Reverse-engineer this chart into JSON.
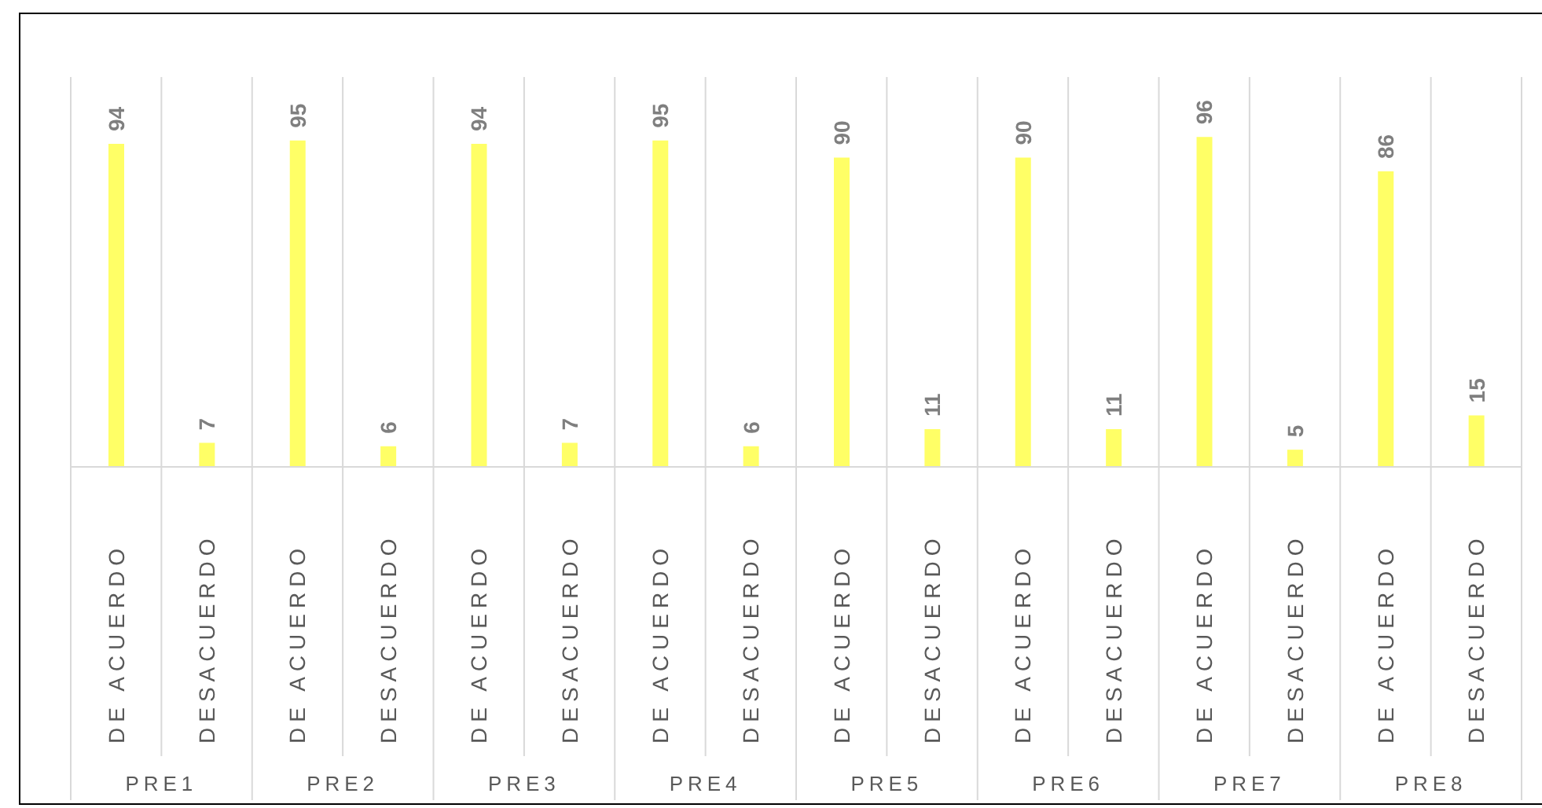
{
  "chart_data": {
    "type": "bar",
    "categories": [
      "DE ACUERDO",
      "DESACUERDO",
      "DE ACUERDO",
      "DESACUERDO",
      "DE ACUERDO",
      "DESACUERDO",
      "DE ACUERDO",
      "DESACUERDO",
      "DE ACUERDO",
      "DESACUERDO",
      "DE ACUERDO",
      "DESACUERDO",
      "DE ACUERDO",
      "DESACUERDO",
      "DE ACUERDO",
      "DESACUERDO"
    ],
    "values": [
      94,
      7,
      95,
      6,
      94,
      7,
      95,
      6,
      90,
      11,
      90,
      11,
      96,
      5,
      86,
      15
    ],
    "color": "#ffff66",
    "annotations": [
      "PRE1",
      "PRE2",
      "PRE3",
      "PRE4",
      "PRE5",
      "PRE6",
      "PRE7",
      "PRE8"
    ],
    "data_labels": true,
    "grid": "x"
  }
}
